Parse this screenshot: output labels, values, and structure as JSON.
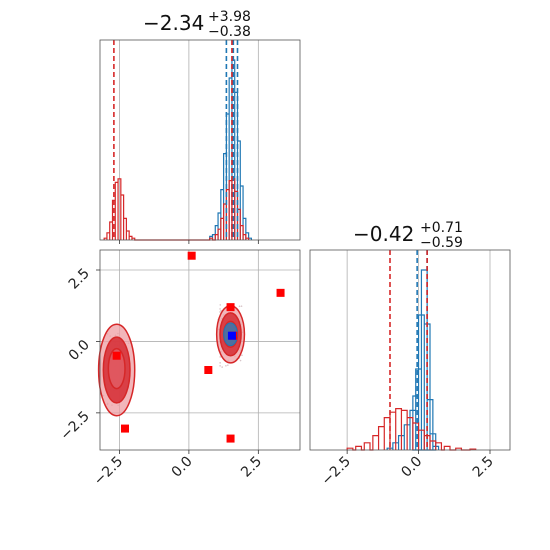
{
  "chart_data": {
    "type": "corner",
    "colors": {
      "red": "#d62728",
      "blue": "#1f77b4",
      "red_marker": "#ff0000",
      "blue_marker": "#0000ff",
      "red_fill_dark": "#d6323a",
      "red_fill_light": "#ee9ea3"
    },
    "parameters": [
      {
        "title": {
          "value": "−2.34",
          "upper": "+3.98",
          "lower": "−0.38"
        },
        "range": [
          -3.2,
          4.0
        ],
        "ticks": [
          -2.5,
          0.0,
          2.5
        ],
        "tick_labels": [
          "−2.5",
          "0.0",
          "2.5"
        ]
      },
      {
        "title": {
          "value": "−0.42",
          "upper": "+0.71",
          "lower": "−0.59"
        },
        "range": [
          -3.8,
          3.2
        ],
        "ticks": [
          -2.5,
          0.0,
          2.5
        ],
        "tick_labels": [
          "−2.5",
          "0.0",
          "2.5"
        ]
      }
    ],
    "hist_1": {
      "range": [
        -3.2,
        4.0
      ],
      "series": [
        {
          "name": "",
          "color": "blue",
          "bins": [
            [
              0.8,
              0.02
            ],
            [
              0.9,
              0.03
            ],
            [
              1.0,
              0.08
            ],
            [
              1.1,
              0.15
            ],
            [
              1.2,
              0.28
            ],
            [
              1.3,
              0.48
            ],
            [
              1.4,
              0.7
            ],
            [
              1.5,
              0.9
            ],
            [
              1.6,
              1.0
            ],
            [
              1.7,
              0.82
            ],
            [
              1.8,
              0.55
            ],
            [
              1.9,
              0.3
            ],
            [
              2.0,
              0.12
            ],
            [
              2.1,
              0.04
            ],
            [
              2.2,
              0.01
            ]
          ],
          "quantiles": [
            1.35,
            1.6,
            1.75
          ]
        },
        {
          "name": "",
          "color": "red",
          "bins": [
            [
              -3.0,
              0.01
            ],
            [
              -2.9,
              0.04
            ],
            [
              -2.8,
              0.1
            ],
            [
              -2.7,
              0.22
            ],
            [
              -2.6,
              0.32
            ],
            [
              -2.5,
              0.34
            ],
            [
              -2.4,
              0.25
            ],
            [
              -2.3,
              0.12
            ],
            [
              -2.2,
              0.05
            ],
            [
              -2.1,
              0.02
            ],
            [
              -2.0,
              0.01
            ],
            [
              0.8,
              0.01
            ],
            [
              1.0,
              0.03
            ],
            [
              1.1,
              0.06
            ],
            [
              1.2,
              0.12
            ],
            [
              1.3,
              0.2
            ],
            [
              1.4,
              0.28
            ],
            [
              1.5,
              0.33
            ],
            [
              1.6,
              0.34
            ],
            [
              1.7,
              0.27
            ],
            [
              1.8,
              0.17
            ],
            [
              1.9,
              0.08
            ],
            [
              2.0,
              0.03
            ],
            [
              2.1,
              0.01
            ]
          ],
          "quantiles": [
            -2.7,
            1.55
          ]
        }
      ]
    },
    "hist_2": {
      "range": [
        -3.8,
        3.2
      ],
      "series": [
        {
          "name": "",
          "color": "blue",
          "bins": [
            [
              -1.0,
              0.01
            ],
            [
              -0.8,
              0.04
            ],
            [
              -0.6,
              0.08
            ],
            [
              -0.4,
              0.14
            ],
            [
              -0.2,
              0.22
            ],
            [
              -0.1,
              0.3
            ],
            [
              0.0,
              0.45
            ],
            [
              0.1,
              0.75
            ],
            [
              0.2,
              1.0
            ],
            [
              0.3,
              0.7
            ],
            [
              0.4,
              0.28
            ],
            [
              0.5,
              0.09
            ],
            [
              0.6,
              0.02
            ]
          ],
          "quantiles": [
            -0.05,
            0.3
          ]
        },
        {
          "name": "",
          "color": "red",
          "bins": [
            [
              -2.4,
              0.01
            ],
            [
              -2.1,
              0.02
            ],
            [
              -1.8,
              0.04
            ],
            [
              -1.5,
              0.08
            ],
            [
              -1.3,
              0.13
            ],
            [
              -1.1,
              0.18
            ],
            [
              -0.9,
              0.21
            ],
            [
              -0.7,
              0.23
            ],
            [
              -0.5,
              0.22
            ],
            [
              -0.3,
              0.18
            ],
            [
              -0.1,
              0.15
            ],
            [
              0.1,
              0.11
            ],
            [
              0.3,
              0.08
            ],
            [
              0.5,
              0.05
            ],
            [
              0.7,
              0.04
            ],
            [
              1.0,
              0.02
            ],
            [
              1.4,
              0.01
            ],
            [
              1.9,
              0.005
            ]
          ],
          "quantiles": [
            -1.0,
            0.3
          ]
        }
      ]
    },
    "scatter": {
      "xrange": [
        -3.2,
        4.0
      ],
      "yrange": [
        -3.8,
        3.2
      ],
      "red_markers": [
        [
          -2.6,
          -0.5
        ],
        [
          -2.3,
          -3.05
        ],
        [
          0.1,
          3.0
        ],
        [
          0.7,
          -1.0
        ],
        [
          1.5,
          1.2
        ],
        [
          1.5,
          -3.4
        ],
        [
          3.3,
          1.7
        ],
        [
          1.6,
          0.2
        ]
      ],
      "blue_markers": [
        [
          1.55,
          0.2
        ]
      ],
      "contours": [
        {
          "center": [
            -2.6,
            -1.0
          ],
          "rx": 0.65,
          "ry": 1.6,
          "level": "outer"
        },
        {
          "center": [
            -2.6,
            -1.0
          ],
          "rx": 0.48,
          "ry": 1.15,
          "level": "mid"
        },
        {
          "center": [
            -2.6,
            -0.95
          ],
          "rx": 0.3,
          "ry": 0.7,
          "level": "inner"
        },
        {
          "center": [
            1.5,
            0.25
          ],
          "rx": 0.5,
          "ry": 1.0,
          "level": "outer"
        },
        {
          "center": [
            1.5,
            0.25
          ],
          "rx": 0.38,
          "ry": 0.75,
          "level": "mid"
        },
        {
          "center": [
            1.5,
            0.25
          ],
          "rx": 0.25,
          "ry": 0.45,
          "level": "inner"
        }
      ],
      "blue_contour": {
        "center": [
          1.5,
          0.25
        ],
        "rx": 0.25,
        "ry": 0.4
      }
    }
  }
}
